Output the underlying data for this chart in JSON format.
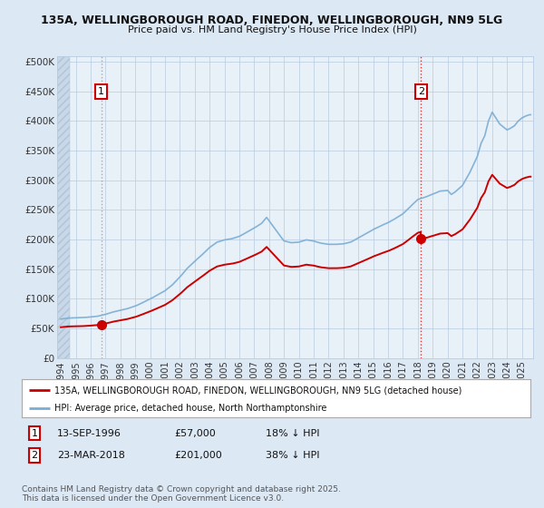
{
  "title_line1": "135A, WELLINGBOROUGH ROAD, FINEDON, WELLINGBOROUGH, NN9 5LG",
  "title_line2": "Price paid vs. HM Land Registry's House Price Index (HPI)",
  "bg_color": "#dde8f5",
  "plot_bg_color": "#e8f0f8",
  "hatch_color": "#c5d5e5",
  "grid_color": "#b8cce0",
  "ylabel_ticks": [
    "£0",
    "£50K",
    "£100K",
    "£150K",
    "£200K",
    "£250K",
    "£300K",
    "£350K",
    "£400K",
    "£450K",
    "£500K"
  ],
  "ytick_values": [
    0,
    50000,
    100000,
    150000,
    200000,
    250000,
    300000,
    350000,
    400000,
    450000,
    500000
  ],
  "ylim": [
    0,
    510000
  ],
  "xlim_start": 1993.75,
  "xlim_end": 2025.75,
  "xtick_years": [
    1994,
    1995,
    1996,
    1997,
    1998,
    1999,
    2000,
    2001,
    2002,
    2003,
    2004,
    2005,
    2006,
    2007,
    2008,
    2009,
    2010,
    2011,
    2012,
    2013,
    2014,
    2015,
    2016,
    2017,
    2018,
    2019,
    2020,
    2021,
    2022,
    2023,
    2024,
    2025
  ],
  "sale1_x": 1996.71,
  "sale1_y": 57000,
  "sale1_label": "1",
  "sale2_x": 2018.22,
  "sale2_y": 201000,
  "sale2_label": "2",
  "sale_color": "#cc0000",
  "hpi_color": "#7aadd4",
  "marker_color": "#cc0000",
  "vline1_color": "#aaaaaa",
  "vline2_color": "#dd3333",
  "legend_label1": "135A, WELLINGBOROUGH ROAD, FINEDON, WELLINGBOROUGH, NN9 5LG (detached house)",
  "legend_label2": "HPI: Average price, detached house, North Northamptonshire",
  "annotation1_date": "13-SEP-1996",
  "annotation1_price": "£57,000",
  "annotation1_hpi": "18% ↓ HPI",
  "annotation2_date": "23-MAR-2018",
  "annotation2_price": "£201,000",
  "annotation2_hpi": "38% ↓ HPI",
  "footnote": "Contains HM Land Registry data © Crown copyright and database right 2025.\nThis data is licensed under the Open Government Licence v3.0."
}
